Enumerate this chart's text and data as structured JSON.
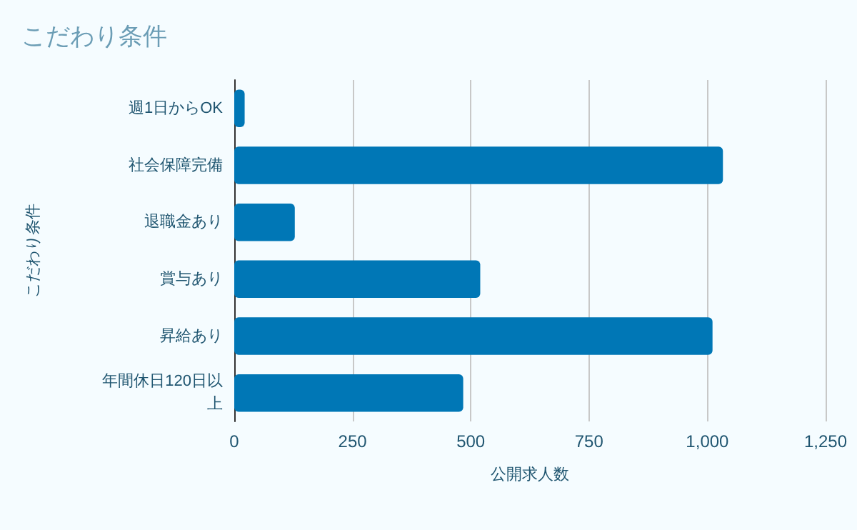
{
  "chart_data": {
    "type": "bar",
    "orientation": "horizontal",
    "title": "こだわり条件",
    "xlabel": "公開求人数",
    "ylabel": "こだわり条件",
    "categories": [
      "週1日からOK",
      "社会保障完備",
      "退職金あり",
      "賞与あり",
      "昇給あり",
      "年間休日120日以上"
    ],
    "values": [
      22,
      1033,
      128,
      520,
      1011,
      484
    ],
    "color": "#0077b6",
    "xlim": [
      0,
      1250
    ],
    "xticks": [
      0,
      250,
      500,
      750,
      {
        "value": 1000,
        "label": "1,000"
      },
      {
        "value": 1250,
        "label": "1,250"
      }
    ],
    "grid": "x"
  }
}
